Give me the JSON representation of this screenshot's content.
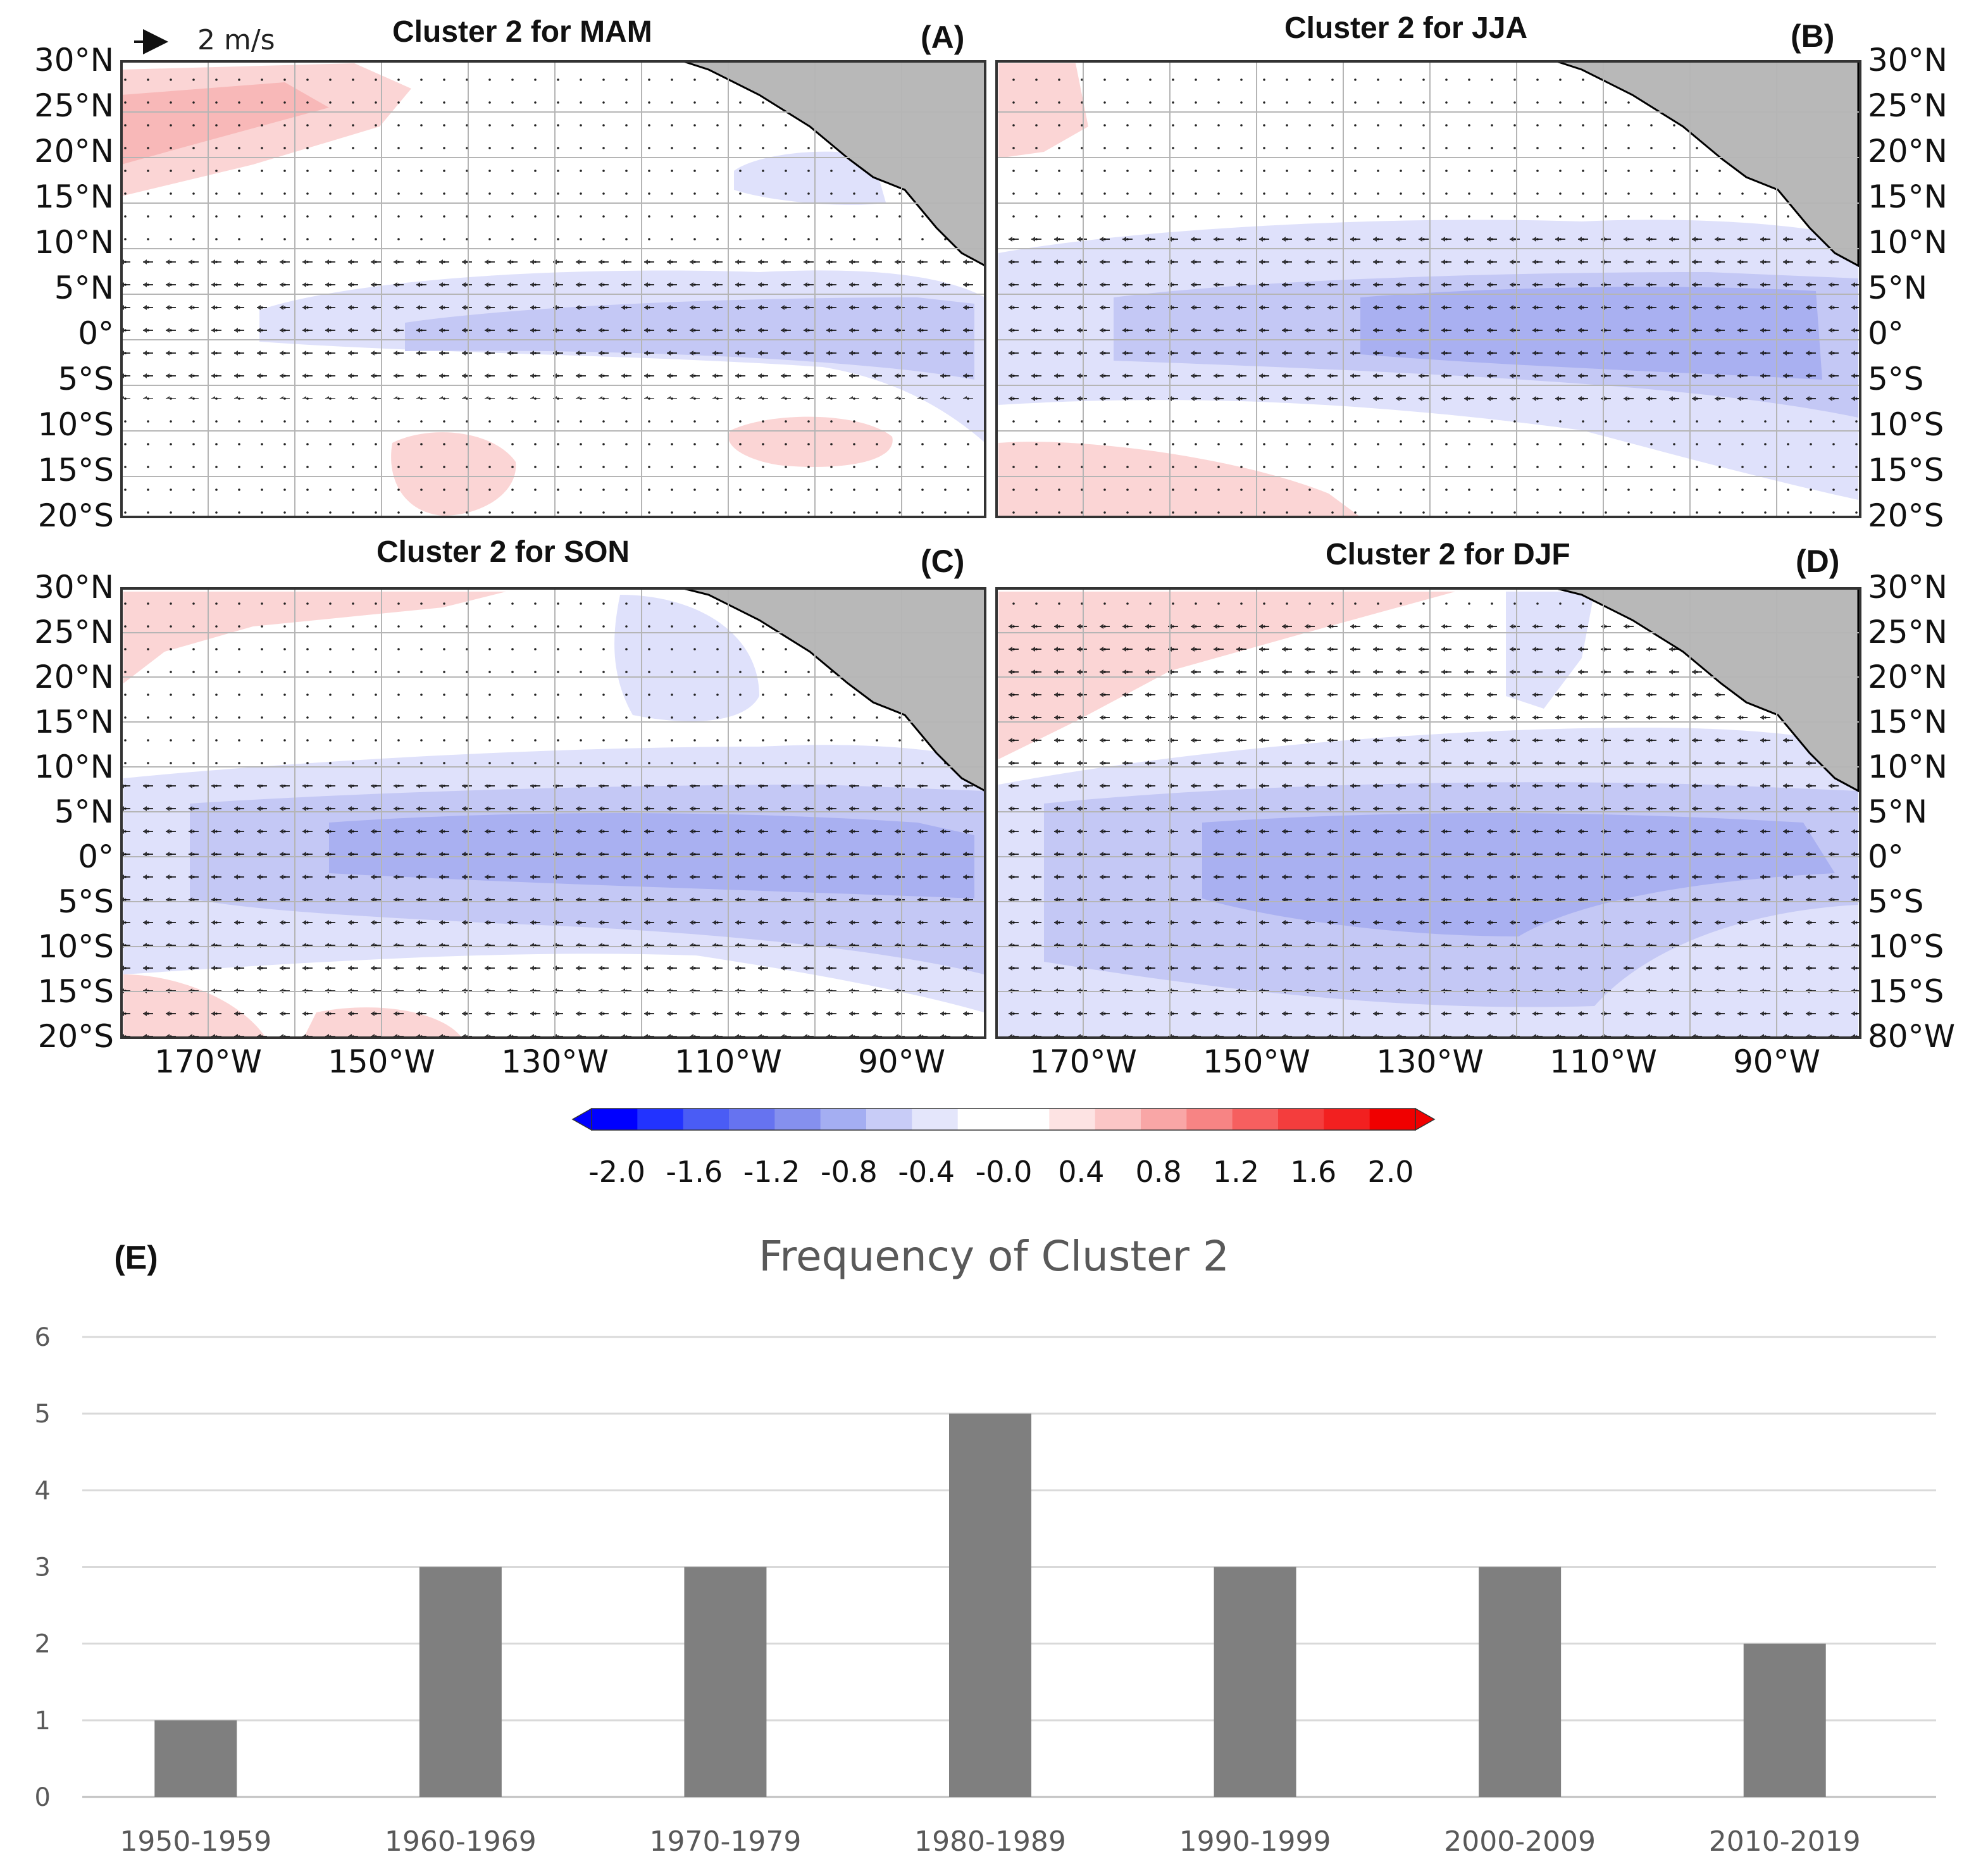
{
  "vector_key": {
    "label": "2 m/s"
  },
  "maps": [
    {
      "title": "Cluster 2 for MAM",
      "tag": "(A)"
    },
    {
      "title": "Cluster 2 for JJA",
      "tag": "(B)"
    },
    {
      "title": "Cluster 2 for SON",
      "tag": "(C)"
    },
    {
      "title": "Cluster 2 for DJF",
      "tag": "(D)"
    }
  ],
  "lat_labels_left": [
    "30°N",
    "25°N",
    "20°N",
    "15°N",
    "10°N",
    "5°N",
    "0°",
    "5°S",
    "10°S",
    "15°S",
    "20°S"
  ],
  "lat_labels_right_top": [
    "30°N",
    "25°N",
    "20°N",
    "15°N",
    "10°N",
    "5°N",
    "0°",
    "5°S",
    "10°S",
    "15°S",
    "20°S"
  ],
  "lat_labels_right_bottom": [
    "30°N",
    "25°N",
    "20°N",
    "15°N",
    "10°N",
    "5°N",
    "0°",
    "5°S",
    "10°S",
    "15°S",
    "80°W"
  ],
  "lon_labels": [
    "170°W",
    "150°W",
    "130°W",
    "110°W",
    "90°W"
  ],
  "colorbar": {
    "ticks": [
      "-2.0",
      "-1.6",
      "-1.2",
      "-0.8",
      "-0.4",
      "-0.0",
      "0.4",
      "0.8",
      "1.2",
      "1.6",
      "2.0"
    ],
    "colors": [
      "#0000ff",
      "#2233ff",
      "#4a5cf5",
      "#6673f0",
      "#8590ee",
      "#a4aef2",
      "#c8ccf7",
      "#e4e6fb",
      "#ffffff",
      "#ffffff",
      "#fde3e3",
      "#fbc6c6",
      "#f9a6a6",
      "#f78484",
      "#f65f5f",
      "#f43d3d",
      "#f22020",
      "#f00000"
    ]
  },
  "chart_data": {
    "type": "bar",
    "panel_tag": "(E)",
    "title": "Frequency of Cluster 2",
    "categories": [
      "1950-1959",
      "1960-1969",
      "1970-1979",
      "1980-1989",
      "1990-1999",
      "2000-2009",
      "2010-2019"
    ],
    "values": [
      1,
      3,
      3,
      5,
      3,
      3,
      2
    ],
    "ylim": [
      0,
      6
    ],
    "yticks": [
      "0",
      "1",
      "2",
      "3",
      "4",
      "5",
      "6"
    ],
    "xlabel": "",
    "ylabel": "",
    "bar_color": "#7f7f7f",
    "grid": true
  }
}
